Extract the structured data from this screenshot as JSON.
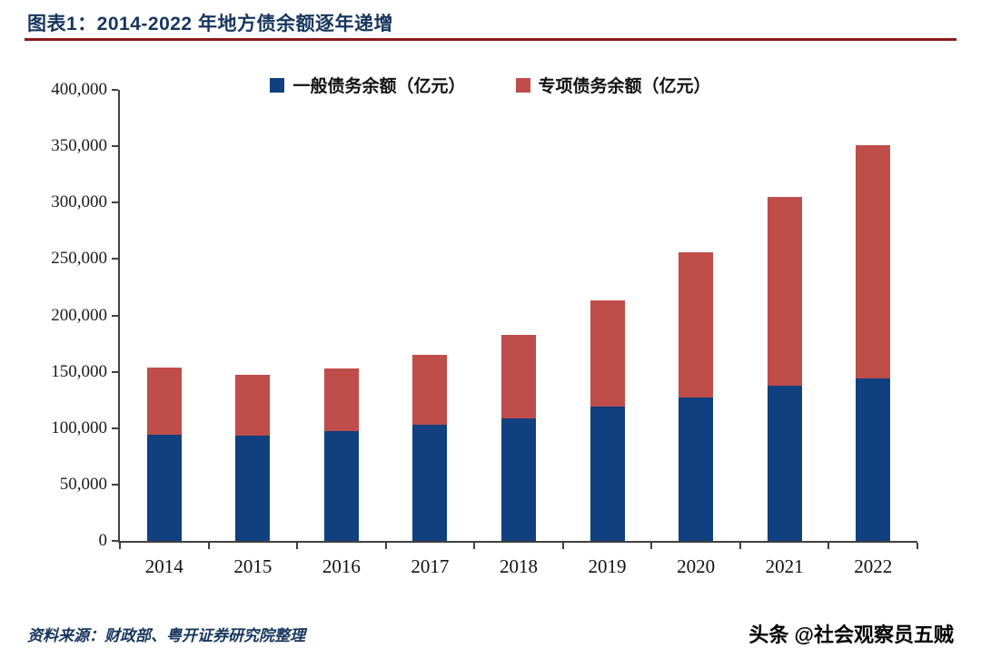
{
  "header": {
    "title": "图表1：2014-2022 年地方债余额逐年递增"
  },
  "chart_data": {
    "type": "bar",
    "stacked": true,
    "title": "图表1：2014-2022 年地方债余额逐年递增",
    "categories": [
      "2014",
      "2015",
      "2016",
      "2017",
      "2018",
      "2019",
      "2020",
      "2021",
      "2022"
    ],
    "series": [
      {
        "name": "一般债务余额（亿元）",
        "color": "#104080",
        "values": [
          94000,
          93000,
          97000,
          103000,
          109000,
          119000,
          127000,
          138000,
          144000
        ]
      },
      {
        "name": "专项债务余额（亿元）",
        "color": "#BF4D49",
        "values": [
          60000,
          54000,
          56000,
          62000,
          74000,
          94000,
          129000,
          167000,
          207000
        ]
      }
    ],
    "xlabel": "",
    "ylabel": "",
    "ylim": [
      0,
      400000
    ],
    "ytick_step": 50000,
    "grid": false,
    "legend_position": "top-center"
  },
  "footer": {
    "source": "资料来源：财政部、粤开证券研究院整理",
    "watermark": "头条 @社会观察员五贼"
  },
  "colors": {
    "title_text": "#17365d",
    "title_rule": "#8B1A1A",
    "axis": "#404040",
    "general_debt_blue": "#104080",
    "special_debt_red": "#BF4D49"
  }
}
